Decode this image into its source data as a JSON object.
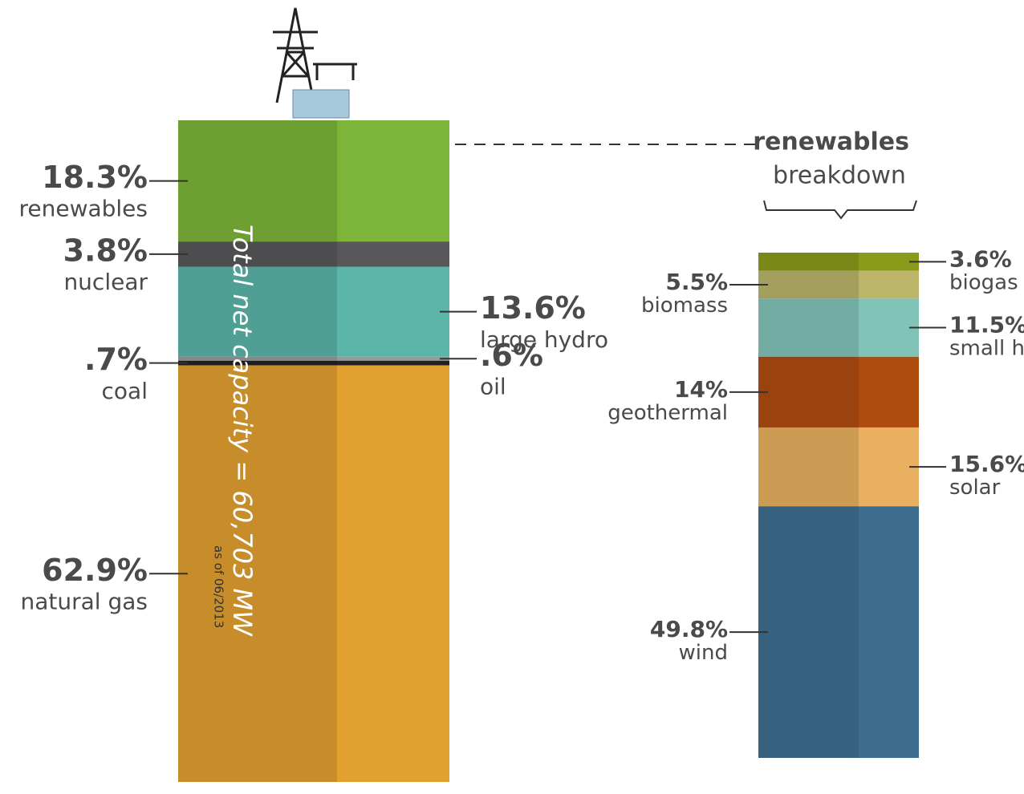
{
  "chart_data": [
    {
      "type": "stacked-column",
      "annotation": "Total net capacity = 60,703 MW",
      "note": "as of 06/2013",
      "categories": [
        "renewables",
        "nuclear",
        "large hydro",
        "oil",
        "coal",
        "natural gas"
      ],
      "values": [
        18.3,
        3.8,
        13.6,
        0.6,
        0.7,
        62.9
      ],
      "value_labels": [
        "18.3%",
        "3.8%",
        "13.6%",
        ".6%",
        ".7%",
        "62.9%"
      ],
      "colors": [
        "#7db53a",
        "#58585a",
        "#5bb5a8",
        "#9a9a9a",
        "#222222",
        "#e2a030"
      ]
    },
    {
      "type": "stacked-column",
      "title": "renewables",
      "subtitle": "breakdown",
      "categories": [
        "biogas",
        "biomass",
        "small hydro",
        "geothermal",
        "solar",
        "wind"
      ],
      "values": [
        3.6,
        5.5,
        11.5,
        14,
        15.6,
        49.8
      ],
      "value_labels": [
        "3.6%",
        "5.5%",
        "11.5%",
        "14%",
        "15.6%",
        "49.8%"
      ],
      "colors": [
        "#8a9a1a",
        "#bcb56a",
        "#82c3b8",
        "#b04c10",
        "#e8b060",
        "#3d6e90"
      ]
    }
  ]
}
